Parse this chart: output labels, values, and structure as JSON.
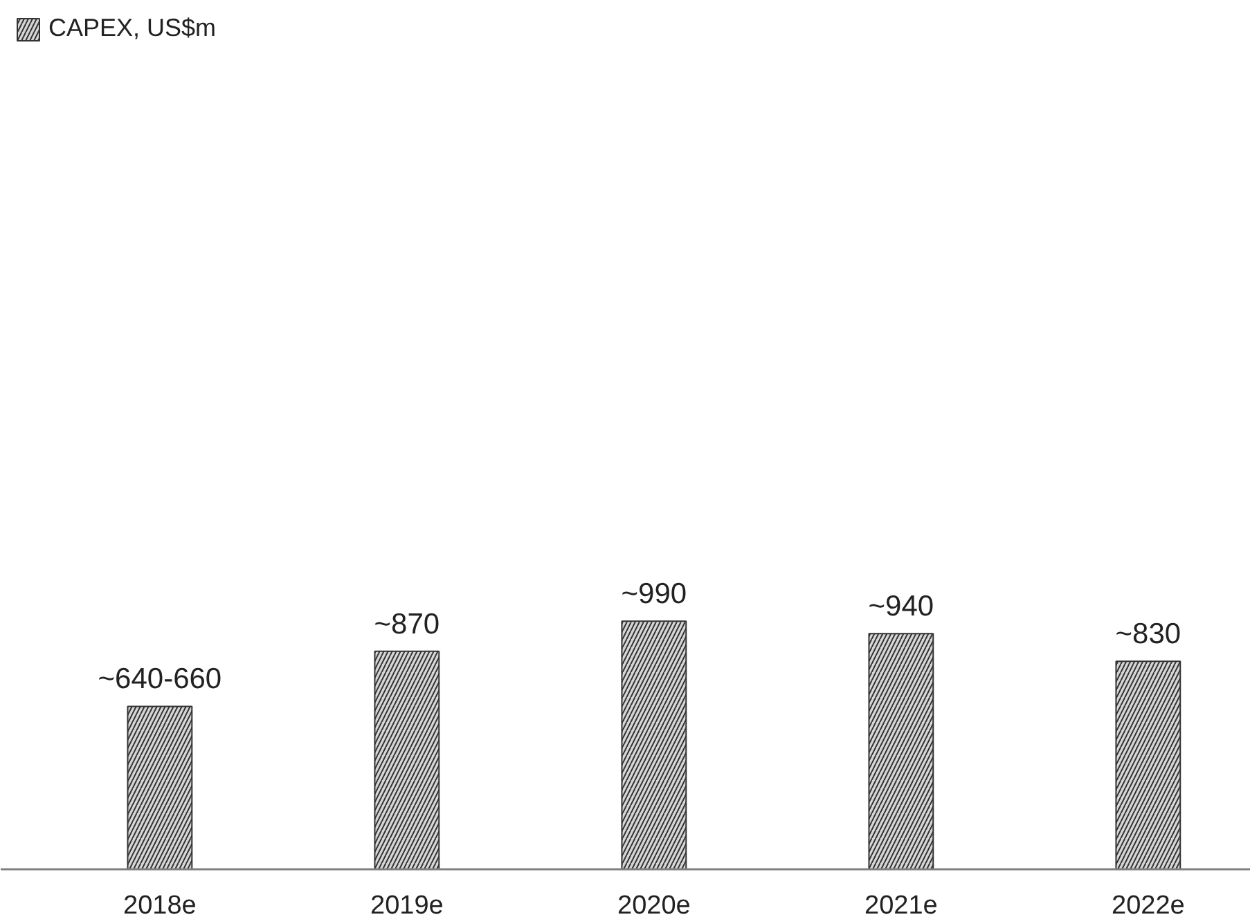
{
  "chart_data": {
    "type": "bar",
    "categories": [
      "2018e",
      "2019e",
      "2020e",
      "2021e",
      "2022e"
    ],
    "series": [
      {
        "name": "CAPEX, US$m",
        "color": "#333333",
        "values": [
          650,
          870,
          990,
          940,
          830
        ],
        "value_labels": [
          "~640-660",
          "~870",
          "~990",
          "~940",
          "~830"
        ]
      }
    ],
    "legend": "top left",
    "grid": false
  }
}
